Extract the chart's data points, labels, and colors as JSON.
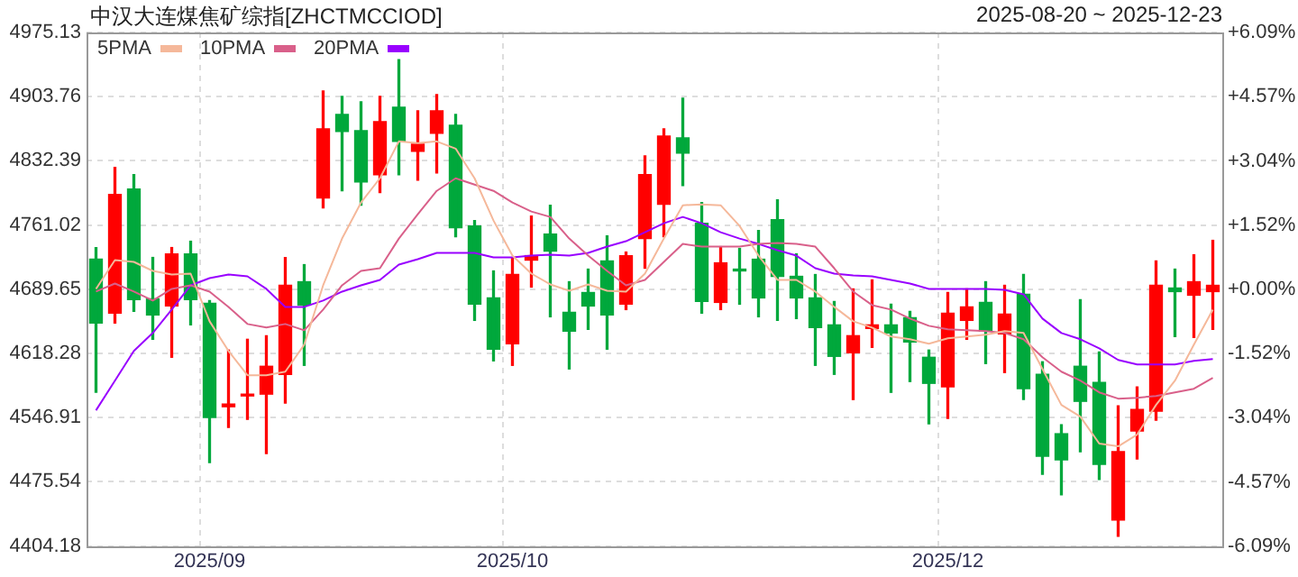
{
  "chart_data": {
    "type": "candlestick",
    "title": "中汉大连煤焦矿综指[ZHCTMCCIOD]",
    "subtitle": "2025-08-20 ~ 2025-12-23",
    "categories": [
      null,
      null,
      null,
      null,
      null,
      null,
      "2025/09",
      null,
      null,
      null,
      null,
      null,
      null,
      null,
      null,
      null,
      null,
      null,
      null,
      null,
      null,
      null,
      "2025/10",
      null,
      null,
      null,
      null,
      null,
      null,
      null,
      null,
      null,
      null,
      null,
      null,
      null,
      null,
      null,
      null,
      null,
      null,
      null,
      null,
      null,
      null,
      "2025/12",
      null,
      null,
      null,
      null,
      null,
      null,
      null,
      null,
      null,
      null,
      null,
      null,
      null,
      null
    ],
    "ohlc": [
      [
        4723,
        4736,
        4575,
        4652
      ],
      [
        4663,
        4825,
        4652,
        4795
      ],
      [
        4801,
        4817,
        4665,
        4678
      ],
      [
        4679,
        4725,
        4634,
        4661
      ],
      [
        4671,
        4736,
        4614,
        4729
      ],
      [
        4729,
        4743,
        4650,
        4678
      ],
      [
        4674,
        4677,
        4497,
        4547
      ],
      [
        4559,
        4622,
        4536,
        4562
      ],
      [
        4571,
        4634,
        4545,
        4573
      ],
      [
        4573,
        4638,
        4507,
        4604
      ],
      [
        4595,
        4725,
        4563,
        4694
      ],
      [
        4698,
        4717,
        4605,
        4672
      ],
      [
        4791,
        4910,
        4780,
        4868
      ],
      [
        4884,
        4904,
        4799,
        4865
      ],
      [
        4866,
        4898,
        4783,
        4809
      ],
      [
        4817,
        4904,
        4797,
        4876
      ],
      [
        4892,
        4945,
        4817,
        4854
      ],
      [
        4843,
        4888,
        4811,
        4851
      ],
      [
        4863,
        4906,
        4819,
        4888
      ],
      [
        4872,
        4884,
        4748,
        4758
      ],
      [
        4760,
        4766,
        4655,
        4673
      ],
      [
        4680,
        4710,
        4610,
        4623
      ],
      [
        4629,
        4725,
        4605,
        4706
      ],
      [
        4722,
        4771,
        4692,
        4727
      ],
      [
        4751,
        4783,
        4659,
        4732
      ],
      [
        4664,
        4698,
        4601,
        4643
      ],
      [
        4686,
        4712,
        4645,
        4671
      ],
      [
        4721,
        4749,
        4623,
        4661
      ],
      [
        4673,
        4731,
        4667,
        4727
      ],
      [
        4746,
        4838,
        4713,
        4817
      ],
      [
        4784,
        4868,
        4748,
        4860
      ],
      [
        4858,
        4902,
        4805,
        4841
      ],
      [
        4763,
        4786,
        4663,
        4676
      ],
      [
        4675,
        4737,
        4667,
        4719
      ],
      [
        4711,
        4735,
        4673,
        4710
      ],
      [
        4723,
        4755,
        4659,
        4680
      ],
      [
        4767,
        4789,
        4655,
        4704
      ],
      [
        4704,
        4729,
        4657,
        4680
      ],
      [
        4680,
        4706,
        4605,
        4647
      ],
      [
        4650,
        4676,
        4595,
        4615
      ],
      [
        4619,
        4690,
        4567,
        4638
      ],
      [
        4646,
        4700,
        4625,
        4650
      ],
      [
        4650,
        4673,
        4575,
        4641
      ],
      [
        4658,
        4665,
        4587,
        4631
      ],
      [
        4614,
        4622,
        4540,
        4585
      ],
      [
        4581,
        4686,
        4546,
        4663
      ],
      [
        4655,
        4690,
        4634,
        4670
      ],
      [
        4675,
        4698,
        4607,
        4643
      ],
      [
        4640,
        4694,
        4597,
        4662
      ],
      [
        4684,
        4706,
        4567,
        4579
      ],
      [
        4595,
        4609,
        4484,
        4504
      ],
      [
        4529,
        4539,
        4461,
        4500
      ],
      [
        4604,
        4678,
        4509,
        4565
      ],
      [
        4586,
        4620,
        4478,
        4495
      ],
      [
        4433,
        4560,
        4415,
        4509
      ],
      [
        4532,
        4581,
        4501,
        4556
      ],
      [
        4554,
        4721,
        4544,
        4694
      ],
      [
        4691,
        4712,
        4637,
        4687
      ],
      [
        4683,
        4728,
        4636,
        4698
      ],
      [
        4687,
        4744,
        4645,
        4694
      ]
    ],
    "colors": [
      "#00a83c",
      "#ff0000",
      "#00a83c",
      "#00a83c",
      "#ff0000",
      "#00a83c",
      "#00a83c",
      "#ff0000",
      "#ff0000",
      "#ff0000",
      "#ff0000",
      "#00a83c",
      "#ff0000",
      "#00a83c",
      "#00a83c",
      "#ff0000",
      "#00a83c",
      "#ff0000",
      "#ff0000",
      "#00a83c",
      "#00a83c",
      "#00a83c",
      "#ff0000",
      "#ff0000",
      "#00a83c",
      "#00a83c",
      "#00a83c",
      "#00a83c",
      "#ff0000",
      "#ff0000",
      "#ff0000",
      "#00a83c",
      "#00a83c",
      "#ff0000",
      "#00a83c",
      "#00a83c",
      "#00a83c",
      "#00a83c",
      "#00a83c",
      "#00a83c",
      "#ff0000",
      "#ff0000",
      "#00a83c",
      "#00a83c",
      "#00a83c",
      "#ff0000",
      "#ff0000",
      "#00a83c",
      "#ff0000",
      "#00a83c",
      "#00a83c",
      "#00a83c",
      "#00a83c",
      "#00a83c",
      "#ff0000",
      "#ff0000",
      "#ff0000",
      "#00a83c",
      "#ff0000",
      "#ff0000"
    ],
    "series": [
      {
        "name": "5PMA",
        "type": "line",
        "color": "#f5b89a",
        "values": [
          4690,
          4722,
          4720,
          4710,
          4706,
          4707,
          4654,
          4621,
          4594,
          4594,
          4598,
          4628,
          4694,
          4746,
          4786,
          4813,
          4854,
          4852,
          4854,
          4846,
          4813,
          4766,
          4727,
          4707,
          4695,
          4688,
          4695,
          4688,
          4687,
          4707,
          4746,
          4783,
          4784,
          4783,
          4760,
          4727,
          4700,
          4700,
          4687,
          4670,
          4654,
          4647,
          4637,
          4634,
          4629,
          4635,
          4637,
          4639,
          4643,
          4641,
          4601,
          4561,
          4548,
          4518,
          4515,
          4528,
          4561,
          4588,
          4628,
          4667
        ]
      },
      {
        "name": "10PMA",
        "type": "line",
        "color": "#d9608a",
        "values": [
          4687,
          4696,
          4687,
          4677,
          4690,
          4694,
          4687,
          4670,
          4651,
          4647,
          4651,
          4644,
          4667,
          4694,
          4710,
          4713,
          4746,
          4773,
          4799,
          4813,
          4806,
          4799,
          4786,
          4776,
          4770,
          4746,
          4727,
          4710,
          4694,
          4700,
          4720,
          4740,
          4737,
          4737,
          4737,
          4740,
          4741,
          4740,
          4737,
          4713,
          4687,
          4672,
          4667,
          4657,
          4649,
          4645,
          4644,
          4643,
          4641,
          4634,
          4614,
          4598,
          4588,
          4575,
          4568,
          4569,
          4571,
          4575,
          4579,
          4591
        ]
      },
      {
        "name": "20PMA",
        "type": "line",
        "color": "#9900ff",
        "values": [
          4555,
          4588,
          4621,
          4641,
          4667,
          4694,
          4702,
          4706,
          4704,
          4690,
          4670,
          4670,
          4677,
          4687,
          4694,
          4700,
          4717,
          4723,
          4730,
          4730,
          4730,
          4725,
          4725,
          4727,
          4728,
          4727,
          4730,
          4737,
          4743,
          4753,
          4763,
          4770,
          4763,
          4753,
          4746,
          4740,
          4733,
          4727,
          4713,
          4707,
          4705,
          4704,
          4700,
          4696,
          4690,
          4690,
          4690,
          4690,
          4689,
          4684,
          4657,
          4641,
          4634,
          4624,
          4611,
          4606,
          4606,
          4606,
          4610,
          4612
        ]
      }
    ],
    "ylim": [
      4404.18,
      4975.13
    ],
    "yticks": [
      4404.18,
      4475.54,
      4546.91,
      4618.28,
      4689.65,
      4761.02,
      4832.39,
      4903.76,
      4975.13
    ],
    "y2lim": [
      -6.09,
      6.09
    ],
    "y2ticks": [
      {
        "value": -6.09,
        "label": "-6.09%"
      },
      {
        "value": -4.57,
        "label": "-4.57%"
      },
      {
        "value": -3.04,
        "label": "-3.04%"
      },
      {
        "value": -1.52,
        "label": "-1.52%"
      },
      {
        "value": 0,
        "label": "+0.00%"
      },
      {
        "value": 1.52,
        "label": "+1.52%"
      },
      {
        "value": 3.04,
        "label": "+3.04%"
      },
      {
        "value": 4.57,
        "label": "+4.57%"
      },
      {
        "value": 6.09,
        "label": "+6.09%"
      }
    ],
    "grid": true,
    "legend": "top left"
  }
}
